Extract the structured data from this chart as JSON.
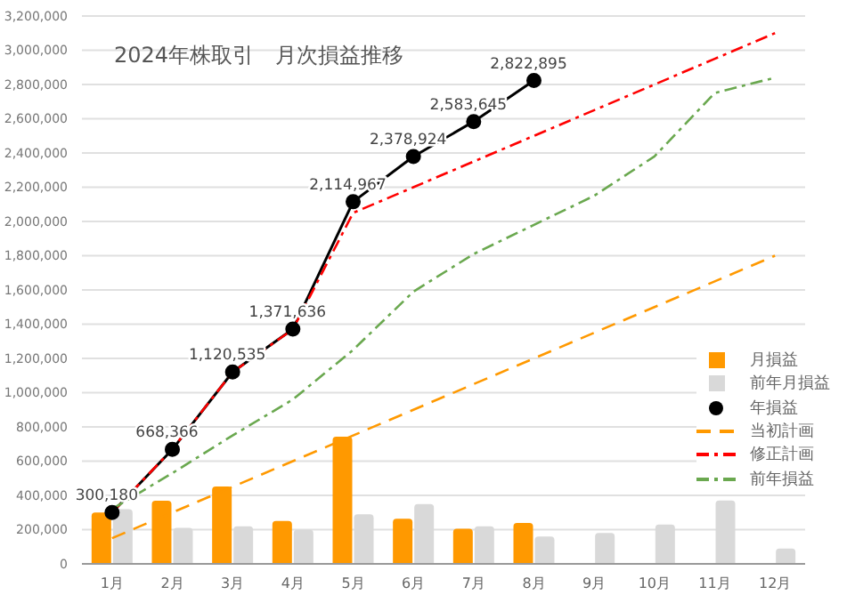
{
  "chart_data": {
    "type": "bar",
    "title": "2024年株取引　月次損益推移",
    "categories": [
      "1月",
      "2月",
      "3月",
      "4月",
      "5月",
      "6月",
      "7月",
      "8月",
      "9月",
      "10月",
      "11月",
      "12月"
    ],
    "series": [
      {
        "name": "月損益",
        "color": "#ff9900",
        "values": [
          300180,
          368186,
          452169,
          251101,
          743331,
          263957,
          204721,
          239250,
          null,
          null,
          null,
          null
        ]
      },
      {
        "name": "前年月損益",
        "color": "#d9d9d9",
        "values": [
          320000,
          210000,
          220000,
          200000,
          290000,
          350000,
          220000,
          160000,
          180000,
          230000,
          370000,
          90000
        ]
      },
      {
        "name": "年損益",
        "type": "line",
        "color": "#000000",
        "marker": "circle",
        "line_style": "solid",
        "values": [
          300180,
          668366,
          1120535,
          1371636,
          2114967,
          2378924,
          2583645,
          2822895,
          null,
          null,
          null,
          null
        ],
        "value_labels": [
          "300,180",
          "668,366",
          "1,120,535",
          "1,371,636",
          "2,114,967",
          "2,378,924",
          "2,583,645",
          "2,822,895",
          null,
          null,
          null,
          null
        ]
      },
      {
        "name": "当初計画",
        "type": "line",
        "color": "#ff9900",
        "marker": "none",
        "line_style": "dashed",
        "values": [
          150000,
          300000,
          450000,
          600000,
          750000,
          900000,
          1050000,
          1200000,
          1350000,
          1500000,
          1650000,
          1800000
        ]
      },
      {
        "name": "修正計画",
        "type": "line",
        "color": "#ff0000",
        "marker": "none",
        "line_style": "dotted",
        "values": [
          300000,
          670000,
          1120000,
          1370000,
          2050000,
          2200000,
          2350000,
          2500000,
          2650000,
          2800000,
          2950000,
          3100000
        ]
      },
      {
        "name": "前年損益",
        "type": "line",
        "color": "#6aa84f",
        "marker": "none",
        "line_style": "dotted",
        "values": [
          320000,
          530000,
          750000,
          960000,
          1250000,
          1590000,
          1810000,
          1980000,
          2150000,
          2380000,
          2750000,
          2840000
        ]
      }
    ],
    "ylim": [
      0,
      3200000
    ],
    "yticks": [
      {
        "value": 0,
        "label": "0"
      },
      {
        "value": 200000,
        "label": "200,000"
      },
      {
        "value": 400000,
        "label": "400,000"
      },
      {
        "value": 600000,
        "label": "600,000"
      },
      {
        "value": 800000,
        "label": "800,000"
      },
      {
        "value": 1000000,
        "label": "1,000,000"
      },
      {
        "value": 1200000,
        "label": "1,200,000"
      },
      {
        "value": 1400000,
        "label": "1,400,000"
      },
      {
        "value": 1600000,
        "label": "1,600,000"
      },
      {
        "value": 1800000,
        "label": "1,800,000"
      },
      {
        "value": 2000000,
        "label": "2,000,000"
      },
      {
        "value": 2200000,
        "label": "2,200,000"
      },
      {
        "value": 2400000,
        "label": "2,400,000"
      },
      {
        "value": 2600000,
        "label": "2,600,000"
      },
      {
        "value": 2800000,
        "label": "2,800,000"
      },
      {
        "value": 3000000,
        "label": "3,000,000"
      },
      {
        "value": 3200000,
        "label": "3,200,000"
      }
    ],
    "grid": "y",
    "legend": "right"
  }
}
